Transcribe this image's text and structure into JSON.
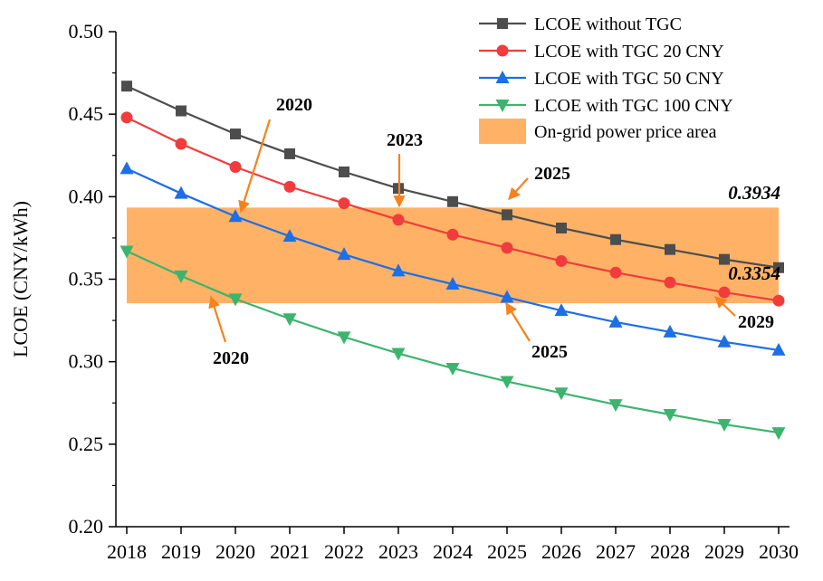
{
  "chart_data": {
    "type": "line",
    "xlabel": "",
    "ylabel": "LCOE (CNY/kWh)",
    "x": [
      2018,
      2019,
      2020,
      2021,
      2022,
      2023,
      2024,
      2025,
      2026,
      2027,
      2028,
      2029,
      2030
    ],
    "x_tick_labels": [
      "2018",
      "2019",
      "2020",
      "2021",
      "2022",
      "2023",
      "2024",
      "2025",
      "2026",
      "2027",
      "2028",
      "2029",
      "2030"
    ],
    "ylim": [
      0.2,
      0.5
    ],
    "y_ticks": [
      0.2,
      0.25,
      0.3,
      0.35,
      0.4,
      0.45,
      0.5
    ],
    "y_tick_labels": [
      "0.20",
      "0.25",
      "0.30",
      "0.35",
      "0.40",
      "0.45",
      "0.50"
    ],
    "grid": false,
    "legend_position": "top-right",
    "series": [
      {
        "name": "LCOE without TGC",
        "color": "#4d4d4d",
        "marker": "square",
        "values": [
          0.467,
          0.452,
          0.438,
          0.426,
          0.415,
          0.405,
          0.397,
          0.389,
          0.381,
          0.374,
          0.368,
          0.362,
          0.357
        ]
      },
      {
        "name": "LCOE with TGC 20 CNY",
        "color": "#f03c3c",
        "marker": "circle",
        "values": [
          0.448,
          0.432,
          0.418,
          0.406,
          0.396,
          0.386,
          0.377,
          0.369,
          0.361,
          0.354,
          0.348,
          0.342,
          0.337
        ]
      },
      {
        "name": "LCOE with TGC 50 CNY",
        "color": "#1e6ee6",
        "marker": "triangle-up",
        "values": [
          0.417,
          0.402,
          0.388,
          0.376,
          0.365,
          0.355,
          0.347,
          0.339,
          0.331,
          0.324,
          0.318,
          0.312,
          0.307
        ]
      },
      {
        "name": "LCOE with TGC 100 CNY",
        "color": "#3cb46e",
        "marker": "triangle-down",
        "values": [
          0.367,
          0.352,
          0.338,
          0.326,
          0.315,
          0.305,
          0.296,
          0.288,
          0.281,
          0.274,
          0.268,
          0.262,
          0.257
        ]
      }
    ],
    "band": {
      "name": "On-grid power price area",
      "color": "#ffb266",
      "x_range": [
        2018,
        2030
      ],
      "y_range": [
        0.3354,
        0.3934
      ]
    },
    "annotations": [
      {
        "text": "0.3934",
        "kind": "value"
      },
      {
        "text": "0.3354",
        "kind": "value"
      },
      {
        "text": "2020",
        "kind": "year",
        "x": 2020,
        "y": 0.388
      },
      {
        "text": "2023",
        "kind": "year",
        "x": 2023,
        "y": 0.386
      },
      {
        "text": "2025",
        "kind": "year",
        "x": 2025,
        "y": 0.389
      },
      {
        "text": "2020",
        "kind": "year",
        "x": 2019.6,
        "y": 0.345
      },
      {
        "text": "2025",
        "kind": "year",
        "x": 2025,
        "y": 0.339
      },
      {
        "text": "2029",
        "kind": "year",
        "x": 2029,
        "y": 0.342
      }
    ]
  }
}
